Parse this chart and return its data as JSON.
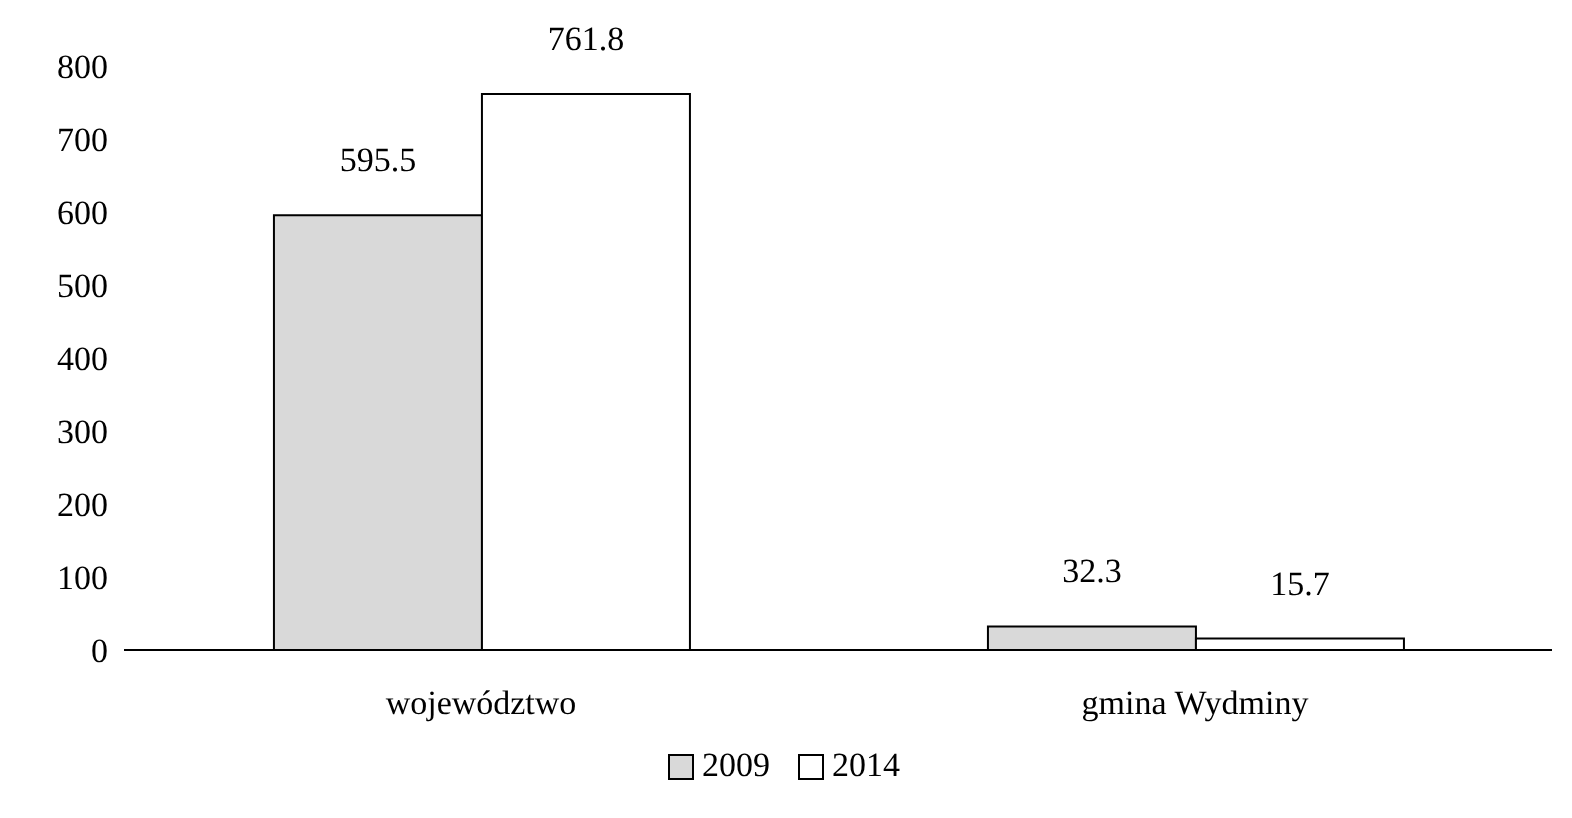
{
  "chart_data": {
    "type": "bar",
    "categories": [
      "województwo",
      "gmina Wydminy"
    ],
    "series": [
      {
        "name": "2009",
        "color": "#d9d9d9",
        "values": [
          595.5,
          32.3
        ]
      },
      {
        "name": "2014",
        "color": "#ffffff",
        "values": [
          761.8,
          15.7
        ]
      }
    ],
    "ylim": [
      0,
      800
    ],
    "yticks": [
      0,
      100,
      200,
      300,
      400,
      500,
      600,
      700,
      800
    ],
    "grid": false,
    "legend": "bottom",
    "data_labels": true
  }
}
